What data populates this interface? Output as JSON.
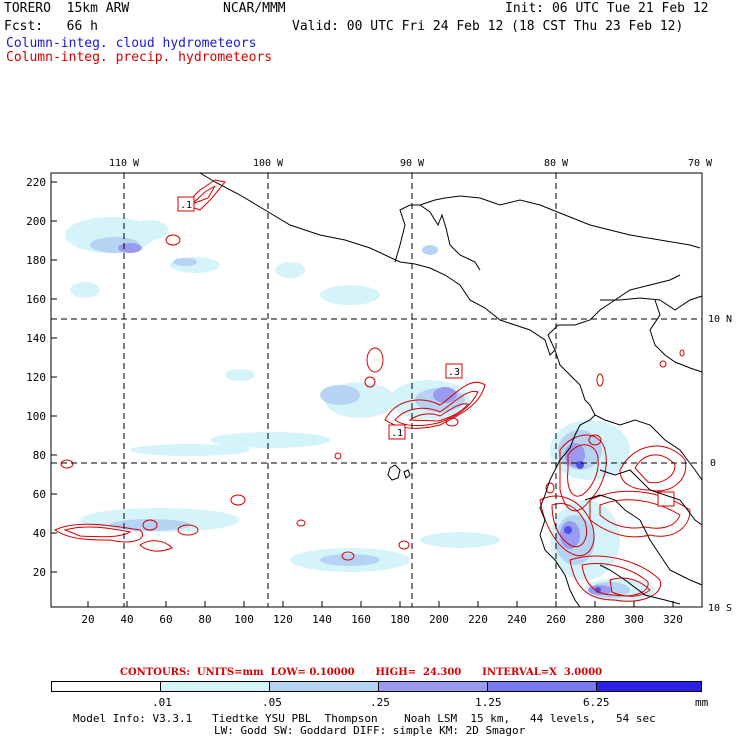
{
  "header": {
    "model": "TORERO  15km ARW",
    "org": "NCAR/MMM",
    "init": "Init: 06 UTC Tue 21 Feb 12",
    "fcst": "Fcst:   66 h",
    "valid": "Valid: 00 UTC Fri 24 Feb 12 (18 CST Thu 23 Feb 12)",
    "field1": "Column-integ. cloud hydrometeors",
    "field2": "Column-integ. precip. hydrometeors"
  },
  "axes": {
    "top_lon": [
      "110 W",
      "100 W",
      "90 W",
      "80 W",
      "70 W"
    ],
    "right_lat": [
      "10 N",
      "0",
      "10 S"
    ],
    "left_ticks": [
      "220",
      "200",
      "180",
      "160",
      "140",
      "120",
      "100",
      "80",
      "60",
      "40",
      "20"
    ],
    "bottom_ticks": [
      "20",
      "40",
      "60",
      "80",
      "100",
      "120",
      "140",
      "160",
      "180",
      "200",
      "220",
      "240",
      "260",
      "280",
      "300",
      "320"
    ]
  },
  "contour_labels": [
    ".1",
    ".3",
    ".1"
  ],
  "contour_info": "CONTOURS:  UNITS=mm  LOW= 0.10000      HIGH=  24.300      INTERVAL=X  3.0000",
  "colorbar": {
    "labels": [
      ".01",
      ".05",
      ".25",
      "1.25",
      "6.25"
    ],
    "units": "mm",
    "colors": [
      "#ffffff",
      "#d4f4fa",
      "#b7d3f4",
      "#9a9af0",
      "#7878f0",
      "#5050ea",
      "#2a20e6"
    ]
  },
  "footer": {
    "line1": "Model Info: V3.3.1   Tiedtke YSU PBL  Thompson    Noah LSM  15 km,   44 levels,   54 sec",
    "line2": "LW: Godd SW: Goddard DIFF: simple KM: 2D Smagor"
  }
}
